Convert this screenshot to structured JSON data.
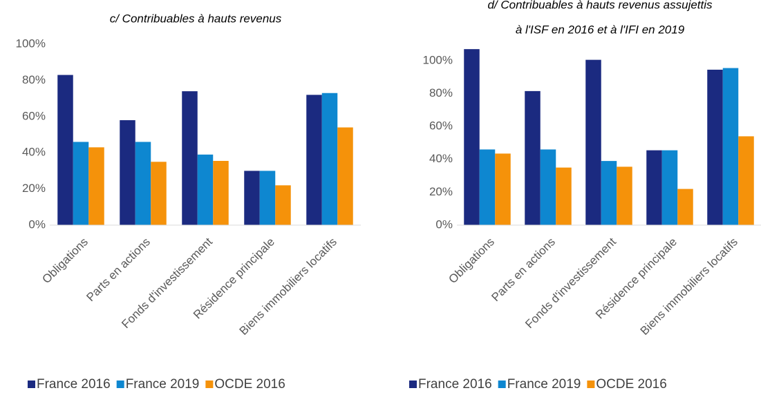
{
  "chart_data": [
    {
      "type": "bar",
      "title": [
        "c/ Contribuables à hauts revenus"
      ],
      "categories": [
        "Obligations",
        "Parts en actions",
        "Fonds d'investissement",
        "Résidence principale",
        "Biens immobiliers locatifs"
      ],
      "series": [
        {
          "name": "France 2016",
          "color": "#1b2a80",
          "values": [
            83,
            58,
            74,
            30,
            72
          ]
        },
        {
          "name": "France 2019",
          "color": "#0e87d0",
          "values": [
            46,
            46,
            39,
            30,
            73
          ]
        },
        {
          "name": "OCDE 2016",
          "color": "#f5920a",
          "values": [
            43,
            35,
            35.5,
            22,
            54
          ]
        }
      ],
      "ylim": [
        0,
        100
      ],
      "yticks": [
        {
          "value": 0,
          "label": "0%"
        },
        {
          "value": 20,
          "label": "20%"
        },
        {
          "value": 40,
          "label": "40%"
        },
        {
          "value": 60,
          "label": "60%"
        },
        {
          "value": 80,
          "label": "80%"
        },
        {
          "value": 100,
          "label": "100%"
        }
      ],
      "legend": "bottom"
    },
    {
      "type": "bar",
      "title": [
        "d/ Contribuables à hauts revenus assujettis",
        "à l'ISF en 2016 et à l'IFI en 2019"
      ],
      "categories": [
        "Obligations",
        "Parts en actions",
        "Fonds d'investissement",
        "Résidence principale",
        "Biens immobiliers locatifs"
      ],
      "series": [
        {
          "name": "France 2016",
          "color": "#1b2a80",
          "values": [
            107,
            81.5,
            100.5,
            45.5,
            94.5
          ]
        },
        {
          "name": "France 2019",
          "color": "#0e87d0",
          "values": [
            46,
            46,
            39,
            45.5,
            95.5
          ]
        },
        {
          "name": "OCDE 2016",
          "color": "#f5920a",
          "values": [
            43.5,
            35,
            35.5,
            22,
            54
          ]
        }
      ],
      "ylim": [
        0,
        110
      ],
      "yticks": [
        {
          "value": 0,
          "label": "0%"
        },
        {
          "value": 20,
          "label": "20%"
        },
        {
          "value": 40,
          "label": "40%"
        },
        {
          "value": 60,
          "label": "60%"
        },
        {
          "value": 80,
          "label": "80%"
        },
        {
          "value": 100,
          "label": "100%"
        }
      ],
      "legend": "bottom"
    }
  ]
}
